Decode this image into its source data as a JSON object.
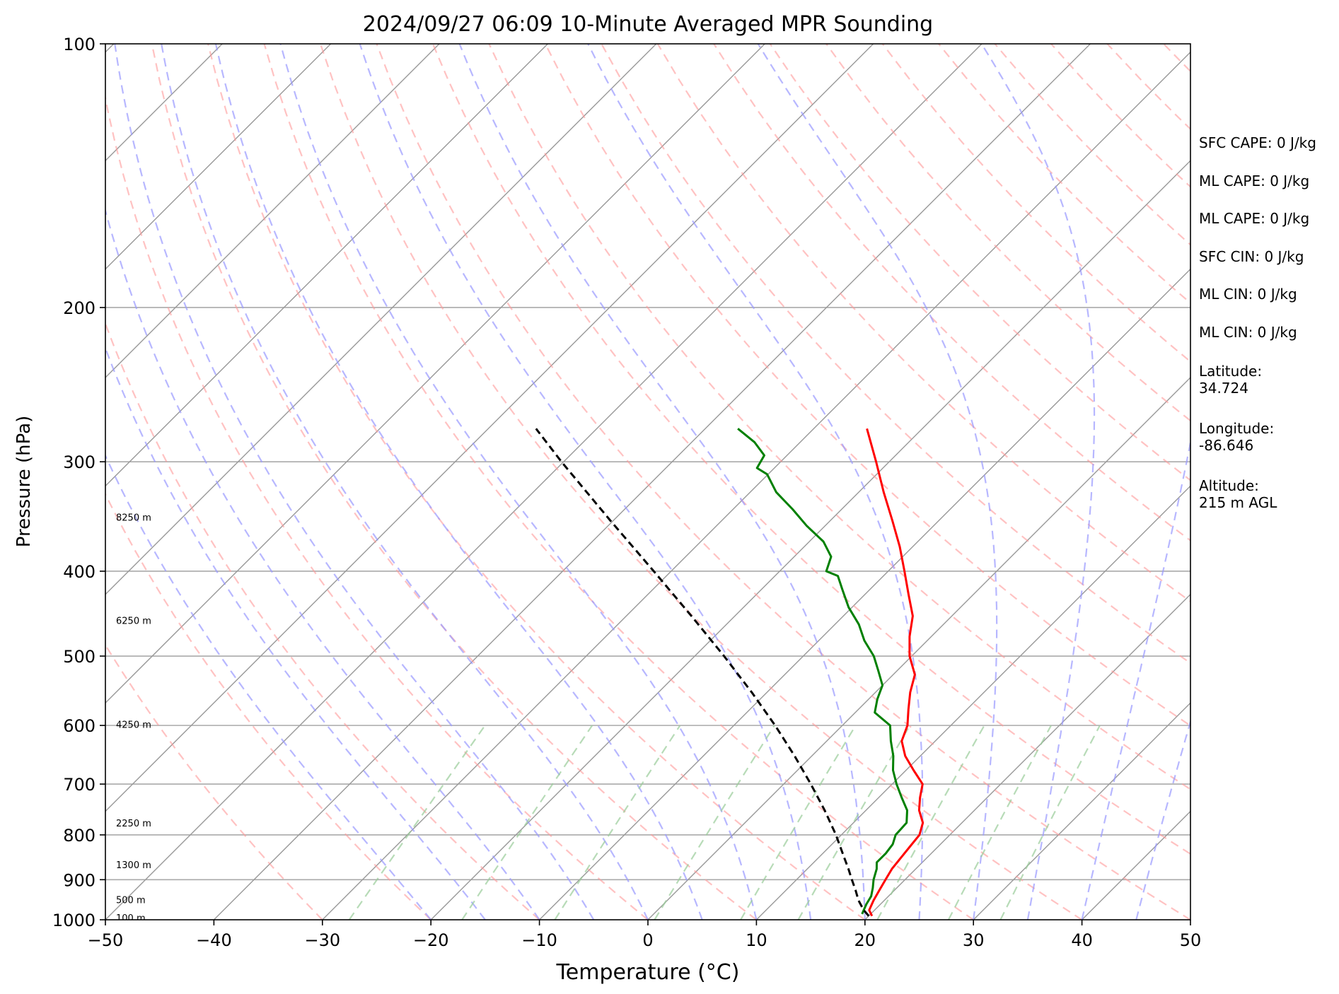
{
  "chart_data": {
    "type": "line",
    "title": "2024/09/27 06:09 10-Minute Averaged MPR Sounding",
    "xlabel": "Temperature (°C)",
    "ylabel": "Pressure (hPa)",
    "xlim": [
      -50,
      50
    ],
    "ylim": [
      1000,
      100
    ],
    "y_scale": "log",
    "x_ticks": [
      -50,
      -40,
      -30,
      -20,
      -10,
      0,
      10,
      20,
      30,
      40,
      50
    ],
    "x_tick_labels": [
      "−50",
      "−40",
      "−30",
      "−20",
      "−10",
      "0",
      "10",
      "20",
      "30",
      "40",
      "50"
    ],
    "y_ticks": [
      1000,
      900,
      800,
      700,
      600,
      500,
      400,
      300,
      200,
      100
    ],
    "y_tick_labels": [
      "1000",
      "900",
      "800",
      "700",
      "600",
      "500",
      "400",
      "300",
      "200",
      "100"
    ],
    "grid": true,
    "skew_degrees": 45,
    "colors": {
      "temperature": "#ff0000",
      "dewpoint": "#008000",
      "parcel": "#000000",
      "dry_adiabats": "#ff9999",
      "moist_adiabats": "#9999ff",
      "mixing_ratio": "#99cc99",
      "isotherms": "#999999",
      "isobars": "#aaaaaa"
    },
    "height_labels": [
      {
        "text": "100 m",
        "pressure": 994
      },
      {
        "text": "500 m",
        "pressure": 948
      },
      {
        "text": "1300 m",
        "pressure": 865
      },
      {
        "text": "2250 m",
        "pressure": 775
      },
      {
        "text": "4250 m",
        "pressure": 598
      },
      {
        "text": "6250 m",
        "pressure": 455
      },
      {
        "text": "8250 m",
        "pressure": 347
      }
    ],
    "series": [
      {
        "role": "temperature",
        "points": [
          {
            "p": 990,
            "t": 20.3
          },
          {
            "p": 975,
            "t": 19.5
          },
          {
            "p": 950,
            "t": 19.0
          },
          {
            "p": 925,
            "t": 18.6
          },
          {
            "p": 900,
            "t": 18.2
          },
          {
            "p": 875,
            "t": 17.8
          },
          {
            "p": 850,
            "t": 17.6
          },
          {
            "p": 825,
            "t": 17.4
          },
          {
            "p": 800,
            "t": 17.2
          },
          {
            "p": 775,
            "t": 16.4
          },
          {
            "p": 750,
            "t": 14.9
          },
          {
            "p": 725,
            "t": 13.8
          },
          {
            "p": 700,
            "t": 12.8
          },
          {
            "p": 675,
            "t": 10.7
          },
          {
            "p": 650,
            "t": 8.6
          },
          {
            "p": 625,
            "t": 6.9
          },
          {
            "p": 600,
            "t": 6.0
          },
          {
            "p": 575,
            "t": 4.6
          },
          {
            "p": 550,
            "t": 3.2
          },
          {
            "p": 525,
            "t": 2.0
          },
          {
            "p": 500,
            "t": -0.2
          },
          {
            "p": 475,
            "t": -2.0
          },
          {
            "p": 450,
            "t": -3.6
          },
          {
            "p": 425,
            "t": -6.0
          },
          {
            "p": 400,
            "t": -8.5
          },
          {
            "p": 375,
            "t": -11.2
          },
          {
            "p": 350,
            "t": -14.3
          },
          {
            "p": 325,
            "t": -17.7
          },
          {
            "p": 300,
            "t": -21.2
          },
          {
            "p": 275,
            "t": -25.1
          }
        ]
      },
      {
        "role": "dewpoint",
        "points": [
          {
            "p": 985,
            "t": 19.2
          },
          {
            "p": 975,
            "t": 19.0
          },
          {
            "p": 960,
            "t": 18.7
          },
          {
            "p": 940,
            "t": 18.4
          },
          {
            "p": 920,
            "t": 17.8
          },
          {
            "p": 900,
            "t": 17.1
          },
          {
            "p": 875,
            "t": 16.4
          },
          {
            "p": 860,
            "t": 15.8
          },
          {
            "p": 840,
            "t": 15.8
          },
          {
            "p": 820,
            "t": 15.6
          },
          {
            "p": 800,
            "t": 15.0
          },
          {
            "p": 775,
            "t": 14.9
          },
          {
            "p": 750,
            "t": 13.8
          },
          {
            "p": 725,
            "t": 12.1
          },
          {
            "p": 700,
            "t": 10.4
          },
          {
            "p": 675,
            "t": 8.8
          },
          {
            "p": 650,
            "t": 7.5
          },
          {
            "p": 625,
            "t": 5.9
          },
          {
            "p": 600,
            "t": 4.4
          },
          {
            "p": 580,
            "t": 1.8
          },
          {
            "p": 560,
            "t": 0.8
          },
          {
            "p": 540,
            "t": 0.0
          },
          {
            "p": 520,
            "t": -1.7
          },
          {
            "p": 500,
            "t": -3.5
          },
          {
            "p": 480,
            "t": -5.8
          },
          {
            "p": 460,
            "t": -7.8
          },
          {
            "p": 440,
            "t": -10.3
          },
          {
            "p": 420,
            "t": -12.5
          },
          {
            "p": 405,
            "t": -14.2
          },
          {
            "p": 400,
            "t": -15.7
          },
          {
            "p": 385,
            "t": -16.6
          },
          {
            "p": 370,
            "t": -18.7
          },
          {
            "p": 355,
            "t": -21.7
          },
          {
            "p": 340,
            "t": -24.5
          },
          {
            "p": 325,
            "t": -27.6
          },
          {
            "p": 310,
            "t": -30.1
          },
          {
            "p": 305,
            "t": -31.6
          },
          {
            "p": 295,
            "t": -32.1
          },
          {
            "p": 285,
            "t": -34.2
          },
          {
            "p": 275,
            "t": -37.0
          }
        ]
      },
      {
        "role": "parcel",
        "points": [
          {
            "p": 990,
            "t": 20.0
          },
          {
            "p": 975,
            "t": 19.0
          },
          {
            "p": 950,
            "t": 17.6
          },
          {
            "p": 925,
            "t": 16.4
          },
          {
            "p": 900,
            "t": 15.1
          },
          {
            "p": 875,
            "t": 13.8
          },
          {
            "p": 850,
            "t": 12.4
          },
          {
            "p": 800,
            "t": 9.5
          },
          {
            "p": 750,
            "t": 6.2
          },
          {
            "p": 700,
            "t": 2.5
          },
          {
            "p": 650,
            "t": -1.6
          },
          {
            "p": 600,
            "t": -6.2
          },
          {
            "p": 550,
            "t": -11.4
          },
          {
            "p": 500,
            "t": -17.3
          },
          {
            "p": 450,
            "t": -24.0
          },
          {
            "p": 400,
            "t": -31.6
          },
          {
            "p": 350,
            "t": -40.3
          },
          {
            "p": 300,
            "t": -50.2
          },
          {
            "p": 275,
            "t": -55.6
          }
        ]
      }
    ]
  },
  "stats": [
    {
      "key": "sfc_cape",
      "text": "SFC CAPE: 0 J/kg"
    },
    {
      "key": "ml_cape",
      "text": "ML CAPE: 0 J/kg"
    },
    {
      "key": "ml_cape_2",
      "text": "ML CAPE: 0 J/kg"
    },
    {
      "key": "sfc_cin",
      "text": "SFC CIN: 0 J/kg"
    },
    {
      "key": "ml_cin",
      "text": "ML CIN: 0 J/kg"
    },
    {
      "key": "ml_cin_2",
      "text": "ML CIN: 0 J/kg"
    }
  ],
  "location": {
    "latitude_label": "Latitude:",
    "latitude_value": "34.724",
    "longitude_label": "Longitude:",
    "longitude_value": "-86.646",
    "altitude_label": "Altitude:",
    "altitude_value": "215 m AGL"
  }
}
